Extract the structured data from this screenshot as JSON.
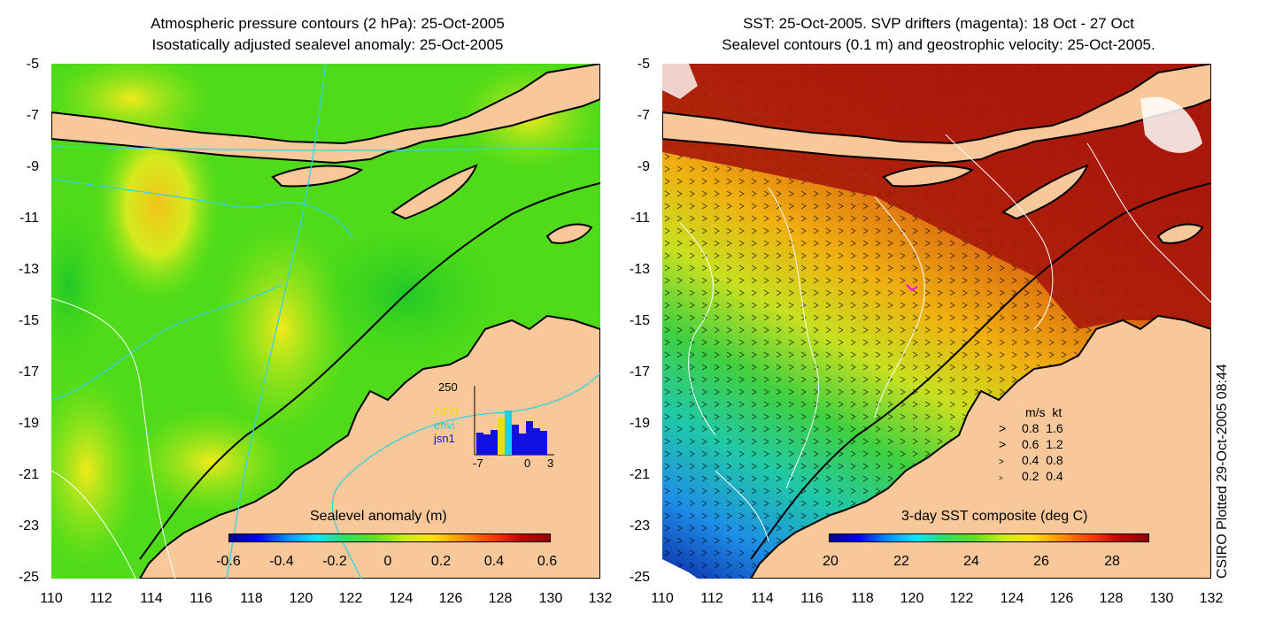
{
  "left_panel": {
    "title_line1": "Atmospheric pressure contours (2 hPa): 25-Oct-2005",
    "title_line2": "Isostatically adjusted sealevel anomaly: 25-Oct-2005",
    "y_ticks": [
      "-5",
      "-7",
      "-9",
      "-11",
      "-13",
      "-15",
      "-17",
      "-19",
      "-21",
      "-23",
      "-25"
    ],
    "x_ticks": [
      "110",
      "112",
      "114",
      "116",
      "118",
      "120",
      "122",
      "124",
      "126",
      "128",
      "130",
      "132"
    ],
    "colorbar": {
      "title": "Sealevel anomaly (m)",
      "ticks": [
        "-0.6",
        "-0.4",
        "-0.2",
        "0",
        "0.2",
        "0.4",
        "0.6"
      ]
    },
    "inset": {
      "ymax_label": "250",
      "series_labels": [
        "GFO",
        "envi",
        "jsn1"
      ],
      "series_colors": [
        "#e8e000",
        "#20d0e0",
        "#1010e0"
      ],
      "x_ticks": [
        "-7",
        "0",
        "3"
      ]
    }
  },
  "right_panel": {
    "title_line1": "SST: 25-Oct-2005. SVP drifters (magenta): 18 Oct - 27 Oct",
    "title_line2": "Sealevel contours (0.1 m) and geostrophic velocity: 25-Oct-2005.",
    "y_ticks": [
      "-5",
      "-7",
      "-9",
      "-11",
      "-13",
      "-15",
      "-17",
      "-19",
      "-21",
      "-23",
      "-25"
    ],
    "x_ticks": [
      "110",
      "112",
      "114",
      "116",
      "118",
      "120",
      "122",
      "124",
      "126",
      "128",
      "130",
      "132"
    ],
    "colorbar": {
      "title": "3-day SST composite (deg C)",
      "ticks": [
        "20",
        "22",
        "24",
        "26",
        "28"
      ]
    },
    "velocity_legend": {
      "header_ms": "m/s",
      "header_kt": "kt",
      "rows": [
        {
          "ms": "0.8",
          "kt": "1.6"
        },
        {
          "ms": "0.6",
          "kt": "1.2"
        },
        {
          "ms": "0.4",
          "kt": "0.8"
        },
        {
          "ms": "0.2",
          "kt": "0.4"
        }
      ]
    }
  },
  "credit": "CSIRO Plotted 29-Oct-2005 08:44",
  "colors": {
    "land": "#f9c89a",
    "sla_main": "#4fdb19",
    "sla_high": "#d8ee1a",
    "sst_warm": "#b01c0a"
  }
}
